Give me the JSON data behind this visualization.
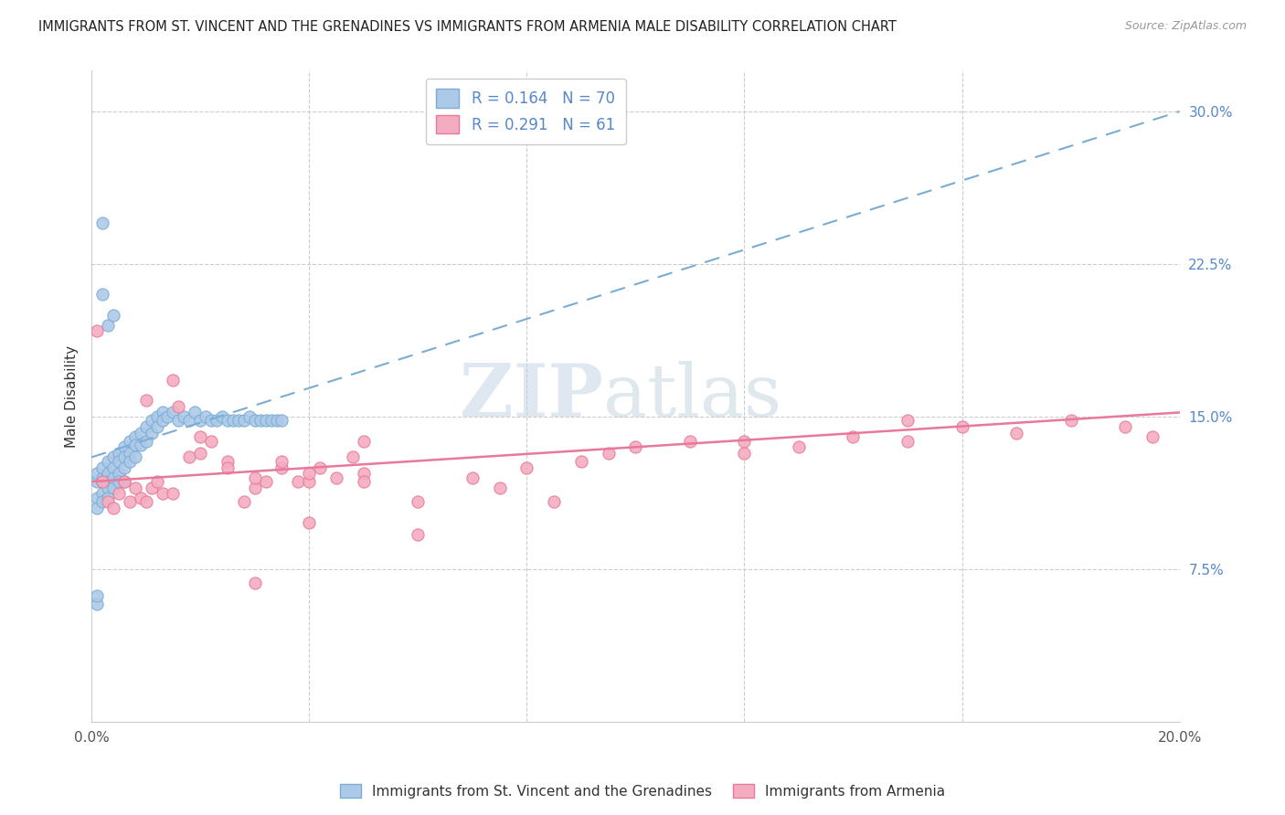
{
  "title": "IMMIGRANTS FROM ST. VINCENT AND THE GRENADINES VS IMMIGRANTS FROM ARMENIA MALE DISABILITY CORRELATION CHART",
  "source": "Source: ZipAtlas.com",
  "ylabel": "Male Disability",
  "xlim": [
    0.0,
    0.2
  ],
  "ylim": [
    0.0,
    0.32
  ],
  "series1_label": "Immigrants from St. Vincent and the Grenadines",
  "series2_label": "Immigrants from Armenia",
  "series1_R": "0.164",
  "series1_N": "70",
  "series2_R": "0.291",
  "series2_N": "61",
  "series1_color": "#adc9e8",
  "series2_color": "#f4adc0",
  "series1_edge_color": "#7aadd4",
  "series2_edge_color": "#e8799a",
  "series1_trend_color": "#7aadd4",
  "series2_trend_color": "#e8799a",
  "watermark_zip": "ZIP",
  "watermark_atlas": "atlas",
  "grid_color": "#cccccc",
  "trend1_x0": 0.0,
  "trend1_y0": 0.13,
  "trend1_x1": 0.2,
  "trend1_y1": 0.3,
  "trend2_x0": 0.0,
  "trend2_y0": 0.118,
  "trend2_x1": 0.2,
  "trend2_y1": 0.152,
  "series1_x": [
    0.001,
    0.001,
    0.001,
    0.001,
    0.002,
    0.002,
    0.002,
    0.002,
    0.002,
    0.003,
    0.003,
    0.003,
    0.003,
    0.003,
    0.004,
    0.004,
    0.004,
    0.004,
    0.005,
    0.005,
    0.005,
    0.005,
    0.006,
    0.006,
    0.006,
    0.006,
    0.007,
    0.007,
    0.007,
    0.008,
    0.008,
    0.008,
    0.009,
    0.009,
    0.01,
    0.01,
    0.011,
    0.011,
    0.012,
    0.012,
    0.013,
    0.013,
    0.014,
    0.015,
    0.016,
    0.017,
    0.018,
    0.019,
    0.02,
    0.021,
    0.022,
    0.023,
    0.024,
    0.025,
    0.026,
    0.027,
    0.028,
    0.029,
    0.03,
    0.031,
    0.032,
    0.033,
    0.034,
    0.035,
    0.003,
    0.004,
    0.002,
    0.001,
    0.002,
    0.001
  ],
  "series1_y": [
    0.118,
    0.122,
    0.11,
    0.105,
    0.12,
    0.125,
    0.118,
    0.112,
    0.108,
    0.128,
    0.122,
    0.118,
    0.115,
    0.11,
    0.13,
    0.125,
    0.12,
    0.115,
    0.132,
    0.128,
    0.122,
    0.118,
    0.135,
    0.13,
    0.125,
    0.118,
    0.138,
    0.132,
    0.128,
    0.14,
    0.136,
    0.13,
    0.142,
    0.136,
    0.145,
    0.138,
    0.148,
    0.142,
    0.15,
    0.145,
    0.152,
    0.148,
    0.15,
    0.152,
    0.148,
    0.15,
    0.148,
    0.152,
    0.148,
    0.15,
    0.148,
    0.148,
    0.15,
    0.148,
    0.148,
    0.148,
    0.148,
    0.15,
    0.148,
    0.148,
    0.148,
    0.148,
    0.148,
    0.148,
    0.195,
    0.2,
    0.21,
    0.058,
    0.245,
    0.062
  ],
  "series2_x": [
    0.001,
    0.002,
    0.003,
    0.004,
    0.005,
    0.006,
    0.007,
    0.008,
    0.009,
    0.01,
    0.011,
    0.012,
    0.013,
    0.015,
    0.016,
    0.018,
    0.02,
    0.022,
    0.025,
    0.028,
    0.03,
    0.032,
    0.035,
    0.038,
    0.04,
    0.042,
    0.045,
    0.048,
    0.05,
    0.01,
    0.015,
    0.02,
    0.025,
    0.03,
    0.035,
    0.04,
    0.05,
    0.06,
    0.07,
    0.08,
    0.09,
    0.1,
    0.11,
    0.12,
    0.13,
    0.14,
    0.15,
    0.16,
    0.17,
    0.18,
    0.19,
    0.195,
    0.06,
    0.075,
    0.085,
    0.095,
    0.03,
    0.04,
    0.05,
    0.12,
    0.15
  ],
  "series2_y": [
    0.192,
    0.118,
    0.108,
    0.105,
    0.112,
    0.118,
    0.108,
    0.115,
    0.11,
    0.108,
    0.115,
    0.118,
    0.112,
    0.168,
    0.155,
    0.13,
    0.132,
    0.138,
    0.128,
    0.108,
    0.115,
    0.118,
    0.125,
    0.118,
    0.118,
    0.125,
    0.12,
    0.13,
    0.122,
    0.158,
    0.112,
    0.14,
    0.125,
    0.12,
    0.128,
    0.122,
    0.138,
    0.108,
    0.12,
    0.125,
    0.128,
    0.135,
    0.138,
    0.132,
    0.135,
    0.14,
    0.138,
    0.145,
    0.142,
    0.148,
    0.145,
    0.14,
    0.092,
    0.115,
    0.108,
    0.132,
    0.068,
    0.098,
    0.118,
    0.138,
    0.148
  ]
}
